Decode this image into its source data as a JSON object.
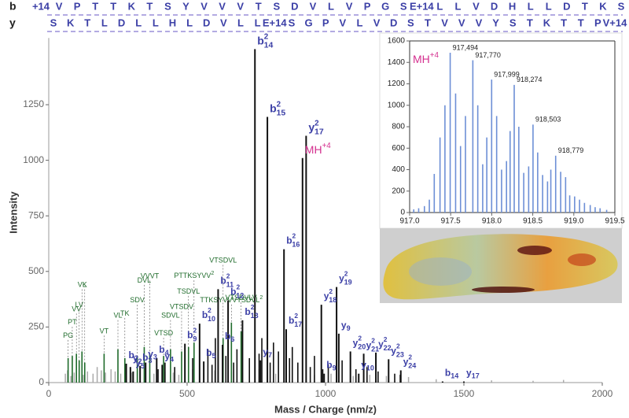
{
  "sequence": {
    "rows": [
      {
        "label": "b",
        "tokens": [
          "+14",
          "V",
          "P",
          "T",
          "T",
          "K",
          "T",
          "S",
          "Y",
          "V",
          "V",
          "V",
          "T",
          "S",
          "D",
          "V",
          "L",
          "V",
          "P",
          "G",
          "S",
          "E+14",
          "L",
          "L",
          "V",
          "D",
          "H",
          "L",
          "L",
          "D",
          "T",
          "K",
          "S"
        ]
      },
      {
        "label": "y",
        "tokens": [
          "S",
          "K",
          "T",
          "L",
          "D",
          "L",
          "L",
          "H",
          "L",
          "D",
          "V",
          "L",
          "L",
          "E+14",
          "S",
          "G",
          "P",
          "V",
          "L",
          "V",
          "D",
          "S",
          "T",
          "V",
          "V",
          "V",
          "Y",
          "S",
          "T",
          "K",
          "T",
          "T",
          "P",
          "V+14"
        ]
      }
    ]
  },
  "chart_data": [
    {
      "type": "spectrum",
      "xlabel": "Mass / Charge (nm/z)",
      "ylabel": "Intensity",
      "xlim": [
        0,
        2000
      ],
      "ylim": [
        0,
        1550
      ],
      "xticks": [
        0,
        500,
        1000,
        1500,
        2000
      ],
      "yticks": [
        0,
        250,
        500,
        750,
        1000,
        1250
      ],
      "label_color": "#3b3fa6",
      "peak_color": "#111111",
      "noise_color": "#aaaaaa",
      "internal_color": "#1f6b2b",
      "noise_peaks": {
        "mz": [
          60,
          68,
          80,
          92,
          110,
          125,
          140,
          160,
          175,
          190,
          205,
          225,
          240,
          260,
          280,
          300,
          320,
          350,
          380,
          420,
          450,
          470,
          520,
          560,
          600,
          660,
          700,
          760,
          820,
          880,
          960,
          1020,
          1100,
          1160,
          1220,
          1300,
          1400,
          1600,
          1750,
          1860
        ],
        "intensity": [
          40,
          55,
          30,
          45,
          60,
          35,
          50,
          40,
          70,
          55,
          45,
          60,
          50,
          40,
          65,
          45,
          55,
          60,
          40,
          50,
          45,
          35,
          60,
          40,
          55,
          50,
          45,
          60,
          40,
          50,
          35,
          40,
          30,
          35,
          30,
          25,
          15,
          10,
          8,
          12
        ]
      },
      "peaks": {
        "mz": [
          395,
          420,
          455,
          520,
          575,
          590,
          602,
          640,
          668,
          680,
          725,
          760,
          770,
          800,
          812,
          830,
          870,
          880,
          900,
          945,
          960,
          990,
          1010,
          1060,
          1110,
          1150,
          1190,
          1250,
          1270
        ],
        "intensity": [
          60,
          90,
          70,
          110,
          150,
          80,
          200,
          120,
          90,
          150,
          110,
          130,
          200,
          90,
          180,
          140,
          110,
          160,
          90,
          70,
          120,
          60,
          80,
          100,
          60,
          70,
          50,
          40,
          35
        ]
      },
      "internal_peaks": [
        {
          "label": "PG",
          "mz": 70,
          "intensity": 110
        },
        {
          "label": "PT",
          "mz": 85,
          "intensity": 120
        },
        {
          "label": "VV",
          "mz": 100,
          "intensity": 130
        },
        {
          "label": "LV",
          "mz": 110,
          "intensity": 100
        },
        {
          "label": "VL",
          "mz": 120,
          "intensity": 140
        },
        {
          "label": "K",
          "mz": 130,
          "intensity": 90
        },
        {
          "label": "VT",
          "mz": 200,
          "intensity": 130
        },
        {
          "label": "VL",
          "mz": 250,
          "intensity": 150
        },
        {
          "label": "TK",
          "mz": 275,
          "intensity": 110
        },
        {
          "label": "SDV",
          "mz": 320,
          "intensity": 120
        },
        {
          "label": "DVL",
          "mz": 345,
          "intensity": 160
        },
        {
          "label": "VVVT",
          "mz": 365,
          "intensity": 130
        },
        {
          "label": "VTSD",
          "mz": 415,
          "intensity": 120
        },
        {
          "label": "SDVL",
          "mz": 440,
          "intensity": 150
        },
        {
          "label": "VTSDV",
          "mz": 480,
          "intensity": 140
        },
        {
          "label": "TSDVL",
          "mz": 505,
          "intensity": 160
        },
        {
          "label": "PTTKSYVV",
          "sup": "2",
          "mz": 525,
          "intensity": 180
        },
        {
          "label": "VTSDVL",
          "mz": 630,
          "intensity": 200
        },
        {
          "label": "TTKSYVVVTSDVL",
          "sup": "2",
          "mz": 660,
          "intensity": 270
        },
        {
          "label": "VTSDVLV",
          "mz": 695,
          "intensity": 230
        }
      ],
      "labeled_peaks": [
        {
          "ion": "b",
          "sub": "14",
          "sup": "2",
          "mz": 745,
          "intensity": 1500
        },
        {
          "ion": "b",
          "sub": "15",
          "sup": "2",
          "mz": 790,
          "intensity": 1195
        },
        {
          "ion": "y",
          "sub": "17",
          "sup": "2",
          "mz": 930,
          "intensity": 1110
        },
        {
          "ion": "MH",
          "sup": "+4",
          "mz": 917,
          "intensity": 1010,
          "color": "#d4308f"
        },
        {
          "ion": "b",
          "sub": "16",
          "sup": "2",
          "mz": 850,
          "intensity": 600
        },
        {
          "ion": "b",
          "sub": "11",
          "sup": "2",
          "mz": 612,
          "intensity": 420
        },
        {
          "ion": "b",
          "sub": "12",
          "sup": "2",
          "mz": 648,
          "intensity": 370
        },
        {
          "ion": "b",
          "sub": "13",
          "sup": "2",
          "mz": 700,
          "intensity": 280
        },
        {
          "ion": "b",
          "sub": "17",
          "sup": "2",
          "mz": 858,
          "intensity": 240
        },
        {
          "ion": "y",
          "sub": "19",
          "sup": "2",
          "mz": 1040,
          "intensity": 430
        },
        {
          "ion": "y",
          "sub": "18",
          "sup": "2",
          "mz": 985,
          "intensity": 350
        },
        {
          "ion": "y",
          "sub": "9",
          "mz": 1048,
          "intensity": 220
        },
        {
          "ion": "y",
          "sub": "20",
          "sup": "2",
          "mz": 1090,
          "intensity": 140
        },
        {
          "ion": "y",
          "sub": "21",
          "sup": "2",
          "mz": 1138,
          "intensity": 130
        },
        {
          "ion": "y",
          "sub": "22",
          "sup": "2",
          "mz": 1182,
          "intensity": 135
        },
        {
          "ion": "y",
          "sub": "23",
          "sup": "2",
          "mz": 1228,
          "intensity": 105
        },
        {
          "ion": "y",
          "sub": "24",
          "sup": "2",
          "mz": 1272,
          "intensity": 55
        },
        {
          "ion": "b",
          "sub": "10",
          "sup": "2",
          "mz": 545,
          "intensity": 265
        },
        {
          "ion": "b",
          "sub": "9",
          "sup": "2",
          "mz": 492,
          "intensity": 175
        },
        {
          "ion": "b",
          "sub": "5",
          "mz": 560,
          "intensity": 95
        },
        {
          "ion": "b",
          "sub": "6",
          "mz": 628,
          "intensity": 170
        },
        {
          "ion": "y",
          "sub": "7",
          "mz": 765,
          "intensity": 100
        },
        {
          "ion": "b",
          "sub": "4",
          "mz": 390,
          "intensity": 110
        },
        {
          "ion": "y",
          "sub": "4",
          "mz": 410,
          "intensity": 80
        },
        {
          "ion": "b",
          "sub": "3",
          "mz": 330,
          "intensity": 75
        },
        {
          "ion": "y",
          "sub": "3",
          "mz": 350,
          "intensity": 90
        },
        {
          "ion": "b",
          "sub": "2",
          "mz": 280,
          "intensity": 85
        },
        {
          "ion": "y",
          "sub": "2",
          "mz": 295,
          "intensity": 70
        },
        {
          "ion": "y",
          "sub": "5",
          "mz": 305,
          "intensity": 50
        },
        {
          "ion": "b",
          "sub": "9",
          "mz": 995,
          "intensity": 40
        },
        {
          "ion": "y",
          "sub": "10",
          "mz": 1120,
          "intensity": 40
        },
        {
          "ion": "b",
          "sub": "14",
          "mz": 1423,
          "intensity": 5
        },
        {
          "ion": "y",
          "sub": "17",
          "mz": 1500,
          "intensity": 5
        }
      ]
    },
    {
      "type": "bar",
      "label": {
        "text": "MH",
        "sup": "+4"
      },
      "label_color": "#d4308f",
      "color": "#6d8fd6",
      "xlim": [
        917.0,
        919.5
      ],
      "ylim": [
        0,
        1600
      ],
      "xticks": [
        {
          "value": 917,
          "label": "917.0"
        },
        {
          "value": 917.5,
          "label": "917.5"
        },
        {
          "value": 918,
          "label": "918.0"
        },
        {
          "value": 918.5,
          "label": "918.5"
        },
        {
          "value": 919,
          "label": "919.0"
        },
        {
          "value": 919.5,
          "label": "919.5"
        }
      ],
      "yticks": [
        0,
        200,
        400,
        600,
        800,
        1000,
        1200,
        1400,
        1600
      ],
      "x": [
        917.05,
        917.11,
        917.18,
        917.24,
        917.3,
        917.37,
        917.43,
        917.494,
        917.56,
        917.62,
        917.68,
        917.77,
        917.83,
        917.89,
        917.94,
        917.999,
        918.06,
        918.12,
        918.18,
        918.224,
        918.274,
        918.33,
        918.39,
        918.45,
        918.503,
        918.56,
        918.62,
        918.68,
        918.72,
        918.779,
        918.84,
        918.9,
        918.95,
        919.01,
        919.07,
        919.13,
        919.2,
        919.26,
        919.32,
        919.4
      ],
      "values": [
        30,
        40,
        60,
        120,
        360,
        700,
        1000,
        1490,
        1110,
        620,
        900,
        1420,
        1000,
        450,
        700,
        1240,
        900,
        400,
        480,
        760,
        1190,
        800,
        370,
        430,
        820,
        560,
        350,
        290,
        400,
        530,
        380,
        330,
        160,
        150,
        120,
        90,
        70,
        50,
        40,
        25
      ],
      "annotations": [
        {
          "x": 917.494,
          "y": 1490,
          "label": "917,494"
        },
        {
          "x": 917.77,
          "y": 1420,
          "label": "917,770"
        },
        {
          "x": 917.999,
          "y": 1240,
          "label": "917,999"
        },
        {
          "x": 918.274,
          "y": 1190,
          "label": "918,274"
        },
        {
          "x": 918.503,
          "y": 820,
          "label": "918,503"
        },
        {
          "x": 918.779,
          "y": 530,
          "label": "918,779"
        }
      ]
    }
  ]
}
